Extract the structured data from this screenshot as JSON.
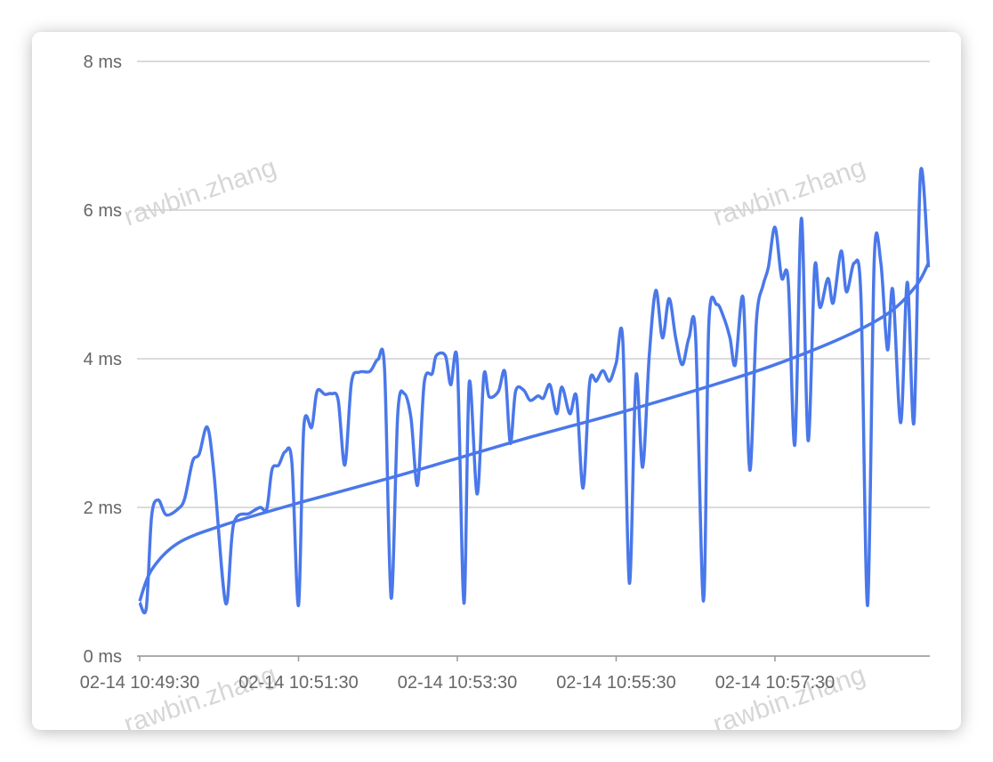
{
  "chart_data": {
    "type": "line",
    "watermark": "rawbin.zhang",
    "x": [
      "02-14 10:49:30",
      "02-14 10:49:35",
      "02-14 10:49:39",
      "02-14 10:49:44",
      "02-14 10:49:50",
      "02-14 10:49:59",
      "02-14 10:50:04",
      "02-14 10:50:10",
      "02-14 10:50:15",
      "02-14 10:50:21",
      "02-14 10:50:26",
      "02-14 10:50:35",
      "02-14 10:50:41",
      "02-14 10:50:53",
      "02-14 10:51:01",
      "02-14 10:51:06",
      "02-14 10:51:10",
      "02-14 10:51:15",
      "02-14 10:51:20",
      "02-14 10:51:25",
      "02-14 10:51:30",
      "02-14 10:51:34",
      "02-14 10:51:40",
      "02-14 10:51:44",
      "02-14 10:51:50",
      "02-14 10:51:55",
      "02-14 10:52:00",
      "02-14 10:52:05",
      "02-14 10:52:10",
      "02-14 10:52:16",
      "02-14 10:52:24",
      "02-14 10:52:30",
      "02-14 10:52:35",
      "02-14 10:52:40",
      "02-14 10:52:45",
      "02-14 10:52:50",
      "02-14 10:52:55",
      "02-14 10:53:00",
      "02-14 10:53:05",
      "02-14 10:53:11",
      "02-14 10:53:14",
      "02-14 10:53:21",
      "02-14 10:53:25",
      "02-14 10:53:30",
      "02-14 10:53:35",
      "02-14 10:53:39",
      "02-14 10:53:45",
      "02-14 10:53:50",
      "02-14 10:53:54",
      "02-14 10:54:01",
      "02-14 10:54:06",
      "02-14 10:54:10",
      "02-14 10:54:14",
      "02-14 10:54:20",
      "02-14 10:54:25",
      "02-14 10:54:31",
      "02-14 10:54:35",
      "02-14 10:54:40",
      "02-14 10:54:45",
      "02-14 10:54:49",
      "02-14 10:54:55",
      "02-14 10:55:00",
      "02-14 10:55:05",
      "02-14 10:55:10",
      "02-14 10:55:15",
      "02-14 10:55:20",
      "02-14 10:55:25",
      "02-14 10:55:30",
      "02-14 10:55:35",
      "02-14 10:55:40",
      "02-14 10:55:45",
      "02-14 10:55:50",
      "02-14 10:55:55",
      "02-14 10:56:00",
      "02-14 10:56:05",
      "02-14 10:56:10",
      "02-14 10:56:15",
      "02-14 10:56:20",
      "02-14 10:56:25",
      "02-14 10:56:30",
      "02-14 10:56:36",
      "02-14 10:56:40",
      "02-14 10:56:46",
      "02-14 10:56:51",
      "02-14 10:56:56",
      "02-14 10:57:00",
      "02-14 10:57:06",
      "02-14 10:57:11",
      "02-14 10:57:16",
      "02-14 10:57:21",
      "02-14 10:57:25",
      "02-14 10:57:30",
      "02-14 10:57:35",
      "02-14 10:57:40",
      "02-14 10:57:45",
      "02-14 10:57:50",
      "02-14 10:57:55",
      "02-14 10:58:00",
      "02-14 10:58:04",
      "02-14 10:58:10",
      "02-14 10:58:14",
      "02-14 10:58:20",
      "02-14 10:58:24",
      "02-14 10:58:30",
      "02-14 10:58:35",
      "02-14 10:58:40",
      "02-14 10:58:45",
      "02-14 10:58:50",
      "02-14 10:58:55",
      "02-14 10:58:59",
      "02-14 10:59:05",
      "02-14 10:59:10",
      "02-14 10:59:15",
      "02-14 10:59:20",
      "02-14 10:59:26"
    ],
    "series": [
      {
        "color": "#4a78ea",
        "values": [
          0.72,
          0.65,
          1.88,
          2.1,
          1.9,
          1.98,
          2.12,
          2.62,
          2.72,
          3.08,
          2.48,
          0.71,
          1.78,
          1.92,
          2.0,
          1.98,
          2.51,
          2.57,
          2.75,
          2.6,
          0.68,
          3.08,
          3.08,
          3.56,
          3.52,
          3.53,
          3.44,
          2.57,
          3.68,
          3.82,
          3.83,
          3.99,
          3.86,
          0.78,
          3.26,
          3.53,
          3.2,
          2.3,
          3.68,
          3.8,
          4.04,
          4.04,
          3.65,
          3.94,
          0.71,
          3.68,
          2.18,
          3.77,
          3.49,
          3.56,
          3.82,
          2.86,
          3.56,
          3.58,
          3.44,
          3.5,
          3.47,
          3.65,
          3.26,
          3.62,
          3.26,
          3.49,
          2.26,
          3.68,
          3.7,
          3.84,
          3.7,
          3.94,
          4.25,
          0.98,
          3.77,
          2.54,
          4.04,
          4.92,
          4.28,
          4.81,
          4.28,
          3.92,
          4.28,
          4.31,
          0.74,
          4.46,
          4.73,
          4.57,
          4.28,
          3.92,
          4.81,
          2.5,
          4.51,
          4.99,
          5.23,
          5.77,
          5.09,
          5.05,
          2.84,
          5.89,
          2.9,
          5.23,
          4.69,
          5.08,
          4.75,
          5.45,
          4.9,
          5.29,
          4.81,
          0.68,
          5.33,
          5.29,
          4.12,
          4.93,
          3.14,
          5.03,
          3.14,
          6.51,
          5.23
        ]
      },
      {
        "color": "#4a78ea",
        "x": [
          "02-14 10:49:30",
          "02-14 10:49:39",
          "02-14 10:49:59",
          "02-14 10:50:33",
          "02-14 10:51:30",
          "02-14 10:52:40",
          "02-14 10:53:30",
          "02-14 10:54:28",
          "02-14 10:55:30",
          "02-14 10:56:42",
          "02-14 10:57:30",
          "02-14 10:58:23",
          "02-14 10:58:57",
          "02-14 10:59:17",
          "02-14 10:59:26"
        ],
        "values": [
          0.74,
          1.16,
          1.52,
          1.76,
          2.06,
          2.4,
          2.66,
          2.96,
          3.26,
          3.64,
          3.92,
          4.3,
          4.63,
          4.99,
          5.29
        ]
      }
    ],
    "xlim": [
      "02-14 10:49:30",
      "02-14 10:59:27"
    ],
    "xticks": [
      "02-14 10:49:30",
      "02-14 10:51:30",
      "02-14 10:53:30",
      "02-14 10:55:30",
      "02-14 10:57:30"
    ],
    "ylim": [
      0,
      8
    ],
    "yticks": [
      {
        "value": 0,
        "label": "0 ms"
      },
      {
        "value": 2,
        "label": "2 ms"
      },
      {
        "value": 4,
        "label": "4 ms"
      },
      {
        "value": 6,
        "label": "6 ms"
      },
      {
        "value": 8,
        "label": "8 ms"
      }
    ],
    "grid": true
  }
}
